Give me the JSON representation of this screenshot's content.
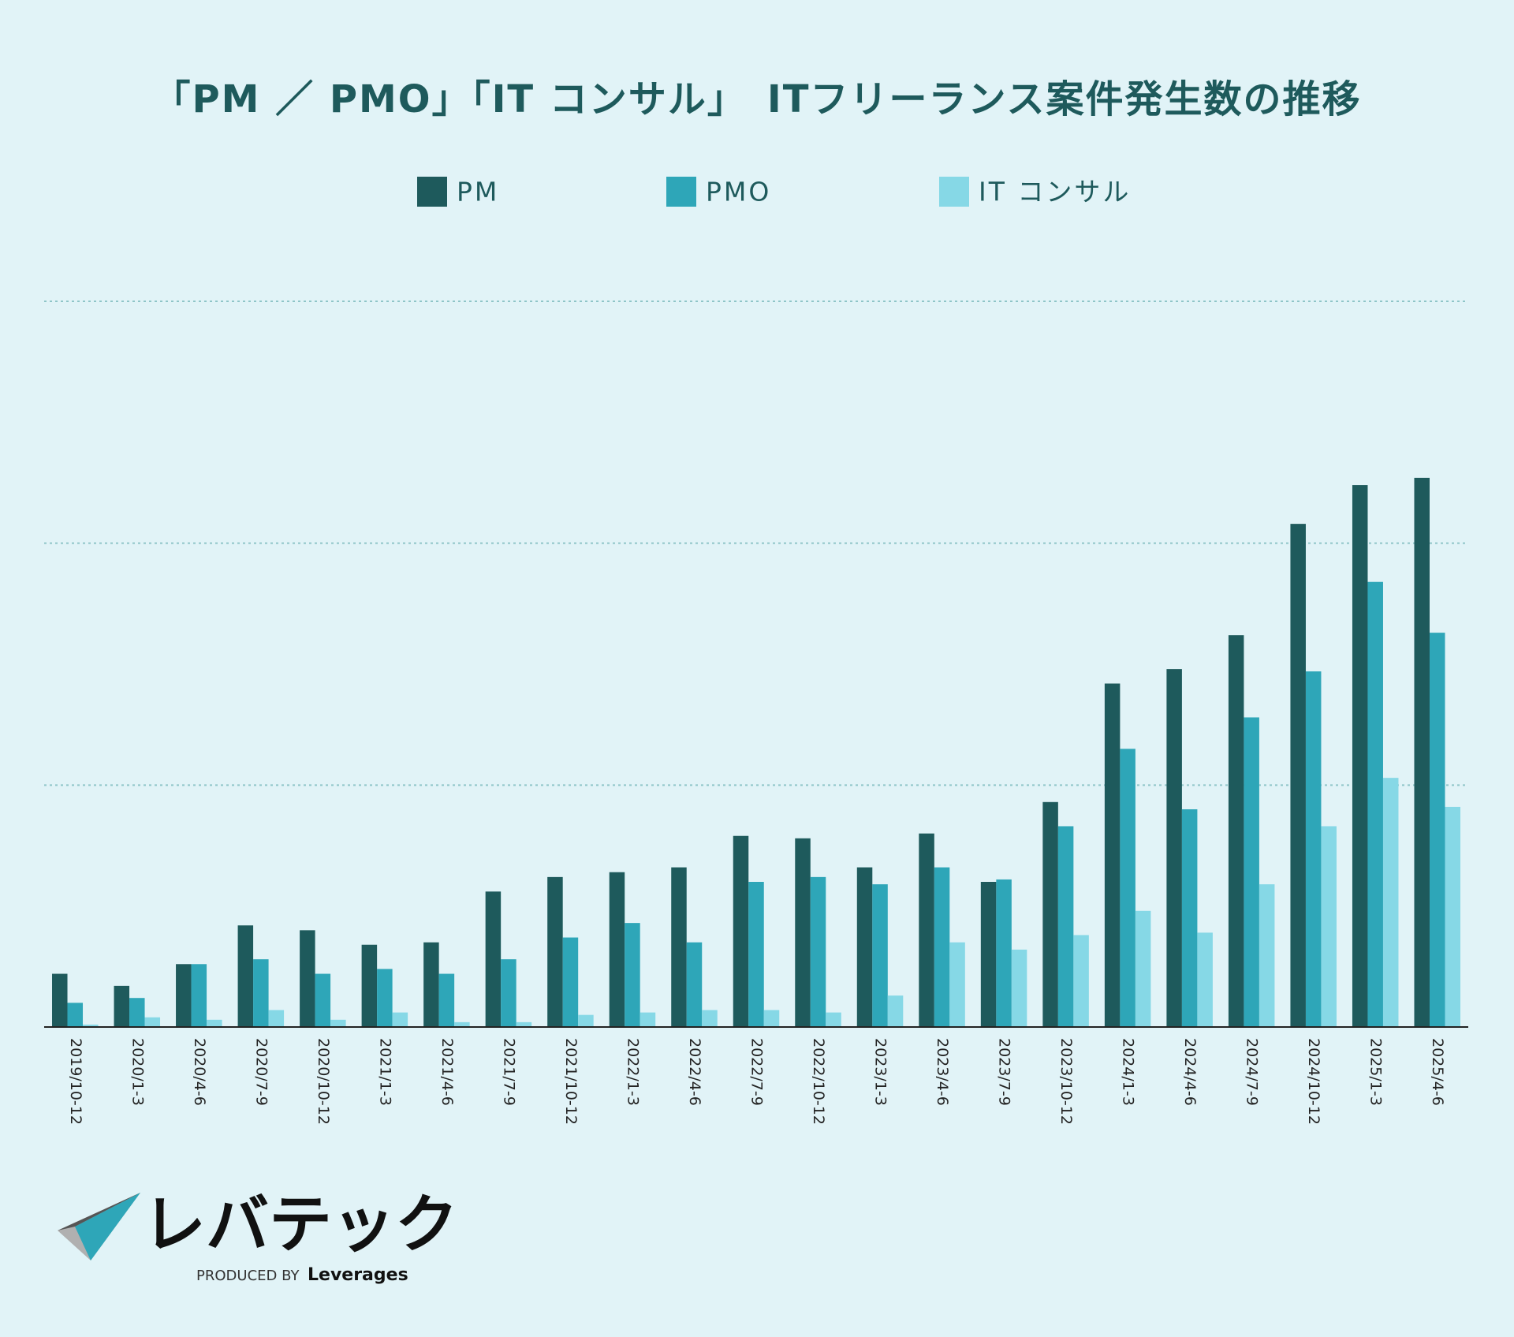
{
  "chart_data": {
    "type": "bar",
    "title": "「PM ／ PMO」「IT コンサル」　ITフリーランス案件発生数の推移",
    "categories": [
      "2019/10-12",
      "2020/1-3",
      "2020/4-6",
      "2020/7-9",
      "2020/10-12",
      "2021/1-3",
      "2021/4-6",
      "2021/7-9",
      "2021/10-12",
      "2022/1-3",
      "2022/4-6",
      "2022/7-9",
      "2022/10-12",
      "2023/1-3",
      "2023/4-6",
      "2023/7-9",
      "2023/10-12",
      "2024/1-3",
      "2024/4-6",
      "2024/7-9",
      "2024/10-12",
      "2025/1-3",
      "2025/4-6"
    ],
    "series": [
      {
        "name": "PM",
        "color": "#1e5a5c",
        "values": [
          22,
          17,
          26,
          42,
          40,
          34,
          35,
          56,
          62,
          64,
          66,
          79,
          78,
          66,
          80,
          60,
          93,
          142,
          148,
          162,
          208,
          224,
          227
        ]
      },
      {
        "name": "PMO",
        "color": "#2ea6b8",
        "values": [
          10,
          12,
          26,
          28,
          22,
          24,
          22,
          28,
          37,
          43,
          35,
          60,
          62,
          59,
          66,
          61,
          83,
          115,
          90,
          128,
          147,
          184,
          163
        ]
      },
      {
        "name": "IT コンサル",
        "color": "#86d8e6",
        "values": [
          1,
          4,
          3,
          7,
          3,
          6,
          2,
          2,
          5,
          6,
          7,
          7,
          6,
          13,
          35,
          32,
          38,
          48,
          39,
          59,
          83,
          103,
          91
        ]
      }
    ],
    "ylim": [
      0,
      300
    ],
    "yticks": [
      100,
      200,
      300
    ],
    "ytick_labels": false,
    "grid": true,
    "legend": "top"
  },
  "logo": {
    "name": "レバテック",
    "tagline": "PRODUCED BY",
    "brand": "Leverages"
  }
}
